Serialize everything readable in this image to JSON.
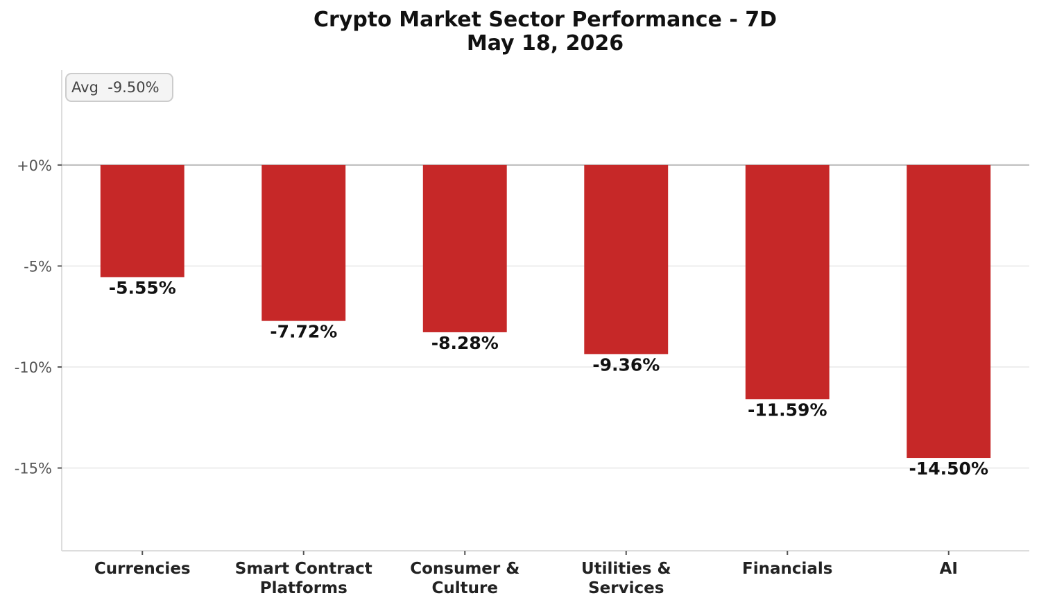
{
  "chart_data": {
    "type": "bar",
    "title": "Crypto Market Sector Performance - 7D",
    "subtitle": "May 18, 2026",
    "categories": [
      [
        "Currencies"
      ],
      [
        "Smart Contract",
        "Platforms"
      ],
      [
        "Consumer &",
        "Culture"
      ],
      [
        "Utilities &",
        "Services"
      ],
      [
        "Financials"
      ],
      [
        "AI"
      ]
    ],
    "values": [
      -5.55,
      -7.72,
      -8.28,
      -9.36,
      -11.59,
      -14.5
    ],
    "data_labels": [
      "-5.55%",
      "-7.72%",
      "-8.28%",
      "-9.36%",
      "-11.59%",
      "-14.50%"
    ],
    "yticks": [
      0,
      -5,
      -10,
      -15
    ],
    "ytick_labels": [
      "+0%",
      "-5%",
      "-10%",
      "-15%"
    ],
    "ylim": [
      -19.1,
      4.7
    ],
    "grid": true,
    "annotation": "Avg  -9.50%",
    "annotation_placement": "top-left",
    "bar_color": "#c62828"
  }
}
